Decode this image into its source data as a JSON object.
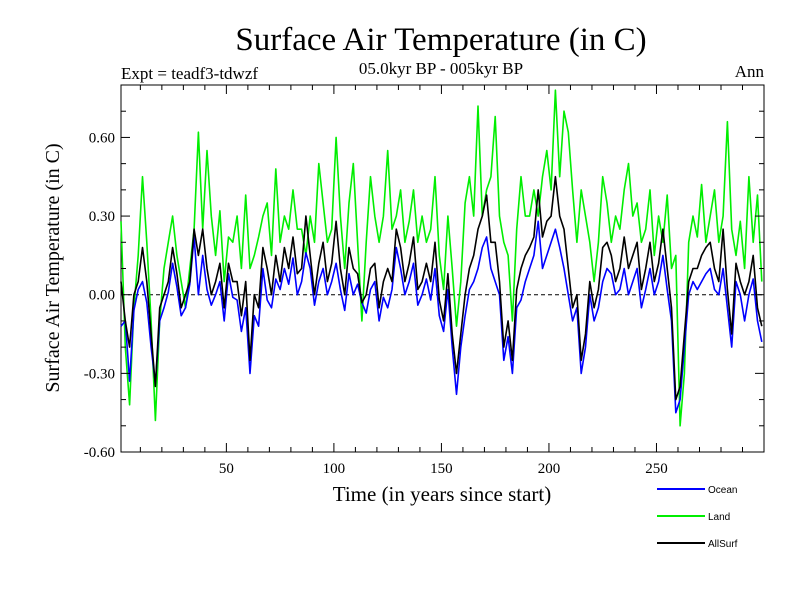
{
  "chart_data": {
    "type": "line",
    "title": "Surface Air Temperature (in C)",
    "subtitle": "05.0kyr BP - 005kyr BP",
    "expt_label": "Expt = teadf3-tdwzf",
    "period_label": "Ann",
    "xlabel": "Time (in years since start)",
    "ylabel": "Surface Air Temperature (in C)",
    "xlim": [
      1,
      300
    ],
    "ylim": [
      -0.6,
      0.8
    ],
    "x_ticks": [
      50,
      100,
      150,
      200,
      250
    ],
    "x_tick_labels": [
      "50",
      "100",
      "150",
      "200",
      "250"
    ],
    "y_ticks": [
      -0.6,
      -0.3,
      0.0,
      0.3,
      0.6
    ],
    "y_tick_labels": [
      "-0.60",
      "-0.30",
      "0.00",
      "0.30",
      "0.60"
    ],
    "zero_line": true,
    "grid": false,
    "legend_position": "bottom-right",
    "series": [
      {
        "name": "Ocean",
        "color": "#0000ff",
        "x_start": 1,
        "x_step": 2,
        "values": [
          -0.12,
          -0.1,
          -0.33,
          -0.06,
          0.02,
          0.05,
          -0.03,
          -0.2,
          -0.34,
          -0.1,
          -0.05,
          0.01,
          0.12,
          0.03,
          -0.08,
          -0.05,
          0.04,
          0.22,
          0.0,
          0.15,
          0.02,
          -0.04,
          0.0,
          0.05,
          -0.1,
          0.08,
          -0.01,
          -0.02,
          -0.14,
          -0.05,
          -0.3,
          -0.08,
          -0.12,
          0.1,
          -0.02,
          -0.05,
          0.06,
          0.02,
          0.1,
          0.04,
          0.14,
          0.0,
          0.05,
          0.16,
          0.1,
          -0.04,
          0.05,
          0.1,
          0.0,
          0.05,
          0.12,
          0.02,
          -0.06,
          0.08,
          0.0,
          0.04,
          -0.03,
          -0.07,
          0.02,
          0.05,
          -0.1,
          -0.01,
          -0.05,
          0.02,
          0.18,
          0.1,
          0.0,
          0.05,
          0.12,
          -0.04,
          0.0,
          0.06,
          -0.02,
          0.1,
          -0.08,
          -0.14,
          0.02,
          -0.2,
          -0.38,
          -0.2,
          -0.08,
          0.02,
          0.05,
          0.1,
          0.18,
          0.22,
          0.1,
          0.05,
          0.0,
          -0.25,
          -0.16,
          -0.3,
          -0.05,
          -0.02,
          0.05,
          0.1,
          0.15,
          0.28,
          0.1,
          0.15,
          0.2,
          0.25,
          0.18,
          0.1,
          0.0,
          -0.1,
          -0.05,
          -0.3,
          -0.2,
          0.0,
          -0.1,
          -0.05,
          0.05,
          0.1,
          0.08,
          0.0,
          0.02,
          0.1,
          0.0,
          0.05,
          0.1,
          -0.05,
          0.02,
          0.1,
          0.0,
          0.05,
          0.15,
          0.02,
          -0.1,
          -0.45,
          -0.4,
          -0.2,
          0.0,
          0.05,
          0.02,
          0.05,
          0.08,
          0.1,
          0.02,
          0.0,
          0.1,
          -0.05,
          -0.2,
          0.05,
          0.0,
          -0.1,
          0.0,
          0.06,
          -0.1,
          -0.18
        ]
      },
      {
        "name": "Land",
        "color": "#00ee00",
        "x_start": 1,
        "x_step": 2,
        "values": [
          0.28,
          -0.2,
          -0.42,
          -0.05,
          0.15,
          0.45,
          0.2,
          -0.1,
          -0.48,
          -0.1,
          0.1,
          0.2,
          0.3,
          0.15,
          0.05,
          -0.05,
          0.1,
          0.25,
          0.62,
          0.25,
          0.55,
          0.3,
          0.15,
          0.32,
          0.05,
          0.22,
          0.2,
          0.3,
          0.1,
          0.38,
          0.1,
          0.15,
          0.22,
          0.3,
          0.35,
          0.15,
          0.48,
          0.2,
          0.3,
          0.25,
          0.4,
          0.25,
          0.25,
          0.15,
          0.3,
          0.2,
          0.5,
          0.35,
          0.2,
          0.25,
          0.6,
          0.3,
          0.1,
          0.35,
          0.5,
          0.2,
          -0.1,
          0.2,
          0.45,
          0.3,
          0.2,
          0.3,
          0.55,
          0.25,
          0.3,
          0.4,
          0.2,
          0.28,
          0.4,
          0.2,
          0.3,
          0.2,
          0.25,
          0.45,
          0.15,
          0.02,
          0.3,
          0.1,
          -0.12,
          0.05,
          0.35,
          0.45,
          0.3,
          0.72,
          0.3,
          0.4,
          0.45,
          0.68,
          0.3,
          0.2,
          0.15,
          -0.1,
          0.25,
          0.45,
          0.3,
          0.3,
          0.4,
          0.3,
          0.45,
          0.55,
          0.4,
          0.78,
          0.45,
          0.7,
          0.62,
          0.4,
          0.2,
          0.4,
          0.3,
          0.2,
          0.05,
          0.2,
          0.45,
          0.35,
          0.2,
          0.3,
          0.25,
          0.4,
          0.5,
          0.3,
          0.35,
          0.2,
          0.25,
          0.4,
          0.15,
          0.3,
          0.2,
          0.38,
          0.1,
          0.15,
          -0.5,
          -0.3,
          0.2,
          0.3,
          0.22,
          0.42,
          0.2,
          0.3,
          0.4,
          0.2,
          0.3,
          0.66,
          0.25,
          0.15,
          0.28,
          0.1,
          0.45,
          0.2,
          0.38,
          0.05
        ]
      },
      {
        "name": "AllSurf",
        "color": "#000000",
        "x_start": 1,
        "x_step": 2,
        "values": [
          0.05,
          -0.1,
          -0.2,
          0.0,
          0.05,
          0.18,
          0.05,
          -0.15,
          -0.35,
          -0.05,
          0.0,
          0.05,
          0.18,
          0.08,
          -0.05,
          0.0,
          0.05,
          0.25,
          0.15,
          0.25,
          0.1,
          0.0,
          0.05,
          0.12,
          -0.05,
          0.12,
          0.05,
          0.05,
          -0.08,
          0.05,
          -0.25,
          0.0,
          -0.05,
          0.18,
          0.1,
          0.0,
          0.15,
          0.05,
          0.18,
          0.1,
          0.22,
          0.08,
          0.1,
          0.3,
          0.15,
          0.0,
          0.12,
          0.2,
          0.05,
          0.12,
          0.28,
          0.1,
          0.0,
          0.18,
          0.1,
          0.08,
          -0.03,
          0.0,
          0.1,
          0.12,
          -0.05,
          0.05,
          0.1,
          0.05,
          0.25,
          0.18,
          0.05,
          0.12,
          0.22,
          0.02,
          0.05,
          0.12,
          0.05,
          0.2,
          -0.02,
          -0.1,
          0.08,
          -0.15,
          -0.3,
          -0.15,
          0.0,
          0.1,
          0.15,
          0.25,
          0.3,
          0.38,
          0.2,
          0.2,
          0.05,
          -0.2,
          -0.1,
          -0.25,
          0.02,
          0.1,
          0.15,
          0.18,
          0.22,
          0.4,
          0.22,
          0.28,
          0.3,
          0.45,
          0.3,
          0.25,
          0.1,
          -0.05,
          0.0,
          -0.25,
          -0.15,
          0.05,
          -0.05,
          0.02,
          0.18,
          0.2,
          0.15,
          0.05,
          0.1,
          0.22,
          0.1,
          0.15,
          0.2,
          0.02,
          0.1,
          0.2,
          0.05,
          0.12,
          0.25,
          0.1,
          -0.05,
          -0.4,
          -0.35,
          -0.15,
          0.05,
          0.1,
          0.1,
          0.15,
          0.18,
          0.2,
          0.1,
          0.05,
          0.25,
          0.02,
          -0.15,
          0.12,
          0.05,
          0.0,
          0.05,
          0.15,
          -0.05,
          -0.12
        ]
      }
    ]
  }
}
